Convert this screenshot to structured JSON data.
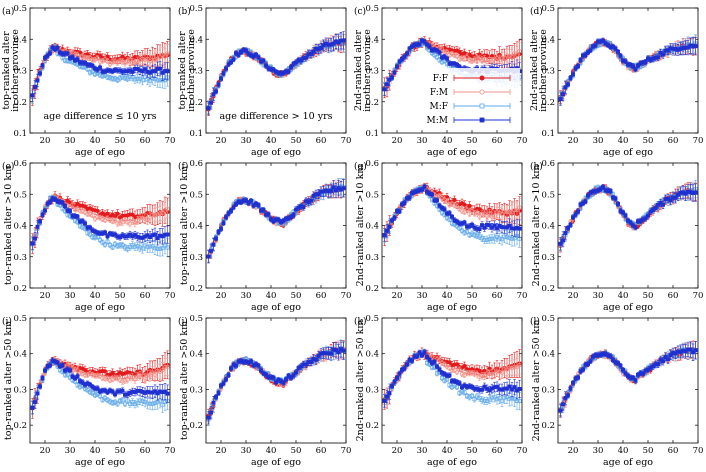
{
  "colors": {
    "FF": "#e31a1c",
    "FM": "#f2938a",
    "MF": "#5fa8e8",
    "MM": "#1f30d0"
  },
  "legend": {
    "FF": "F:F",
    "FM": "F:M",
    "MF": "M:F",
    "MM": "M:M"
  },
  "series_order": [
    "FF",
    "FM",
    "MF",
    "MM"
  ],
  "x_ticks": [
    20,
    30,
    40,
    50,
    60,
    70
  ],
  "x_range": [
    14,
    70
  ],
  "xlabel": "age of ego",
  "chart_data": [
    {
      "type": "scatter",
      "label": "(a)",
      "ylabel": [
        "top-ranked alter",
        "in other province"
      ],
      "ylim": [
        0.1,
        0.5
      ],
      "y_ticks": [
        0.1,
        0.2,
        0.3,
        0.4,
        0.5
      ],
      "annotation": "age difference ≤ 10 yrs",
      "legend": false,
      "kind": "A1",
      "pk": 0.37,
      "tail_up": 0.38,
      "tail_dn": 0.29
    },
    {
      "type": "scatter",
      "label": "(b)",
      "ylabel": [
        "top-ranked alter",
        "in other province"
      ],
      "ylim": [
        0.1,
        0.5
      ],
      "y_ticks": [
        0.1,
        0.2,
        0.3,
        0.4,
        0.5
      ],
      "annotation": "age difference > 10 yrs",
      "legend": false,
      "kind": "B",
      "pk": 0.36,
      "dip": 0.29,
      "end": 0.39
    },
    {
      "type": "scatter",
      "label": "(c)",
      "ylabel": [
        "2nd-ranked alter",
        "in other province"
      ],
      "ylim": [
        0.1,
        0.5
      ],
      "y_ticks": [
        0.1,
        0.2,
        0.3,
        0.4,
        0.5
      ],
      "annotation": "",
      "legend": true,
      "kind": "A2",
      "pk": 0.39,
      "tail_up": 0.39,
      "tail_dn": 0.29
    },
    {
      "type": "scatter",
      "label": "(d)",
      "ylabel": [
        "2nd-ranked alter",
        "in other province"
      ],
      "ylim": [
        0.1,
        0.5
      ],
      "y_ticks": [
        0.1,
        0.2,
        0.3,
        0.4,
        0.5
      ],
      "annotation": "",
      "legend": false,
      "kind": "B2",
      "pk": 0.39,
      "dip": 0.31,
      "end": 0.38
    },
    {
      "type": "scatter",
      "label": "(e)",
      "ylabel": [
        "top-ranked alter >10 km"
      ],
      "ylim": [
        0.2,
        0.6
      ],
      "y_ticks": [
        0.2,
        0.3,
        0.4,
        0.5,
        0.6
      ],
      "annotation": "",
      "legend": false,
      "kind": "A1",
      "pk": 0.49,
      "tail_up": 0.5,
      "tail_dn": 0.35
    },
    {
      "type": "scatter",
      "label": "(f)",
      "ylabel": [
        "top-ranked alter >10 km"
      ],
      "ylim": [
        0.2,
        0.6
      ],
      "y_ticks": [
        0.2,
        0.3,
        0.4,
        0.5,
        0.6
      ],
      "annotation": "",
      "legend": false,
      "kind": "B",
      "pk": 0.48,
      "dip": 0.41,
      "end": 0.52
    },
    {
      "type": "scatter",
      "label": "(g)",
      "ylabel": [
        "2nd-ranked alter >10 km"
      ],
      "ylim": [
        0.2,
        0.6
      ],
      "y_ticks": [
        0.2,
        0.3,
        0.4,
        0.5,
        0.6
      ],
      "annotation": "",
      "legend": false,
      "kind": "A2",
      "pk": 0.52,
      "tail_up": 0.5,
      "tail_dn": 0.38
    },
    {
      "type": "scatter",
      "label": "(h)",
      "ylabel": [
        "2nd-ranked alter >10 km"
      ],
      "ylim": [
        0.2,
        0.6
      ],
      "y_ticks": [
        0.2,
        0.3,
        0.4,
        0.5,
        0.6
      ],
      "annotation": "",
      "legend": false,
      "kind": "B2",
      "pk": 0.52,
      "dip": 0.4,
      "end": 0.51
    },
    {
      "type": "scatter",
      "label": "(i)",
      "ylabel": [
        "top-ranked alter >50 km"
      ],
      "ylim": [
        0.15,
        0.5
      ],
      "y_ticks": [
        0.2,
        0.3,
        0.4,
        0.5
      ],
      "annotation": "",
      "legend": false,
      "kind": "A1",
      "pk": 0.38,
      "tail_up": 0.4,
      "tail_dn": 0.28
    },
    {
      "type": "scatter",
      "label": "(j)",
      "ylabel": [
        "top-ranked alter >50 km"
      ],
      "ylim": [
        0.15,
        0.5
      ],
      "y_ticks": [
        0.2,
        0.3,
        0.4,
        0.5
      ],
      "annotation": "",
      "legend": false,
      "kind": "B",
      "pk": 0.38,
      "dip": 0.32,
      "end": 0.41
    },
    {
      "type": "scatter",
      "label": "(k)",
      "ylabel": [
        "2nd-ranked alter >50 km"
      ],
      "ylim": [
        0.15,
        0.5
      ],
      "y_ticks": [
        0.2,
        0.3,
        0.4,
        0.5
      ],
      "annotation": "",
      "legend": false,
      "kind": "A2",
      "pk": 0.4,
      "tail_up": 0.41,
      "tail_dn": 0.29
    },
    {
      "type": "scatter",
      "label": "(l)",
      "ylabel": [
        "2nd-ranked alter >50 km"
      ],
      "ylim": [
        0.15,
        0.5
      ],
      "y_ticks": [
        0.2,
        0.3,
        0.4,
        0.5
      ],
      "annotation": "",
      "legend": false,
      "kind": "B2",
      "pk": 0.4,
      "dip": 0.33,
      "end": 0.41
    }
  ]
}
